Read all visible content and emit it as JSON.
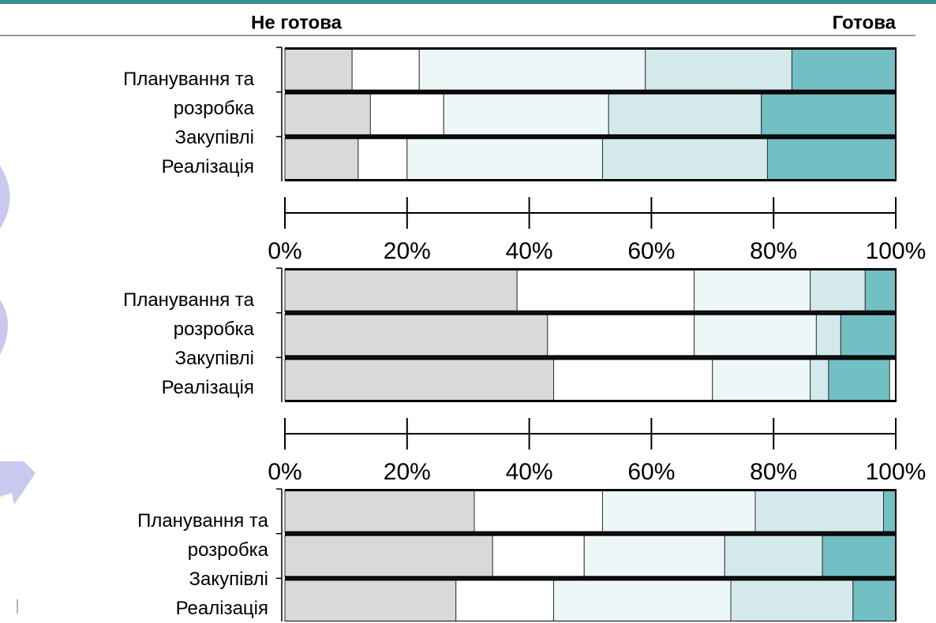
{
  "header": {
    "left": "Не готова",
    "right": "Готова"
  },
  "chart_data": [
    {
      "type": "stacked-bar-horizontal",
      "categories": [
        "Планування та розробка",
        "Закупівлі",
        "Реалізація"
      ],
      "series": [
        {
          "color": "#d9d9d9",
          "values": [
            11,
            14,
            12
          ]
        },
        {
          "color": "#ffffff",
          "values": [
            11,
            12,
            8
          ]
        },
        {
          "color": "#eef7f8",
          "values": [
            37,
            27,
            32
          ]
        },
        {
          "color": "#d4e9ec",
          "values": [
            24,
            25,
            27
          ]
        },
        {
          "color": "#72bfc4",
          "values": [
            17,
            22,
            21
          ]
        }
      ],
      "xlim": [
        0,
        100
      ],
      "xticks": [
        {
          "value": 0,
          "label": "0%"
        },
        {
          "value": 20,
          "label": "20%"
        },
        {
          "value": 40,
          "label": "40%"
        },
        {
          "value": 60,
          "label": "60%"
        },
        {
          "value": 80,
          "label": "80%"
        },
        {
          "value": 100,
          "label": "100%"
        }
      ]
    },
    {
      "type": "stacked-bar-horizontal",
      "categories": [
        "Планування та розробка",
        "Закупівлі",
        "Реалізація"
      ],
      "series": [
        {
          "color": "#d9d9d9",
          "values": [
            38,
            43,
            44
          ]
        },
        {
          "color": "#ffffff",
          "values": [
            29,
            24,
            26
          ]
        },
        {
          "color": "#eef7f8",
          "values": [
            19,
            20,
            16
          ]
        },
        {
          "color": "#d4e9ec",
          "values": [
            9,
            4,
            3
          ]
        },
        {
          "color": "#72bfc4",
          "values": [
            5,
            9,
            10
          ]
        }
      ],
      "xlim": [
        0,
        100
      ],
      "xticks": [
        {
          "value": 0,
          "label": "0%"
        },
        {
          "value": 20,
          "label": "20%"
        },
        {
          "value": 40,
          "label": "40%"
        },
        {
          "value": 60,
          "label": "60%"
        },
        {
          "value": 80,
          "label": "80%"
        },
        {
          "value": 100,
          "label": "100%"
        }
      ]
    },
    {
      "type": "stacked-bar-horizontal",
      "categories": [
        "Планування та розробка",
        "Закупівлі",
        "Реалізація"
      ],
      "series": [
        {
          "color": "#d9d9d9",
          "values": [
            31,
            34,
            28
          ]
        },
        {
          "color": "#ffffff",
          "values": [
            21,
            15,
            16
          ]
        },
        {
          "color": "#eef7f8",
          "values": [
            25,
            23,
            29
          ]
        },
        {
          "color": "#d4e9ec",
          "values": [
            21,
            16,
            20
          ]
        },
        {
          "color": "#72bfc4",
          "values": [
            2,
            12,
            7
          ]
        }
      ],
      "xlim": [
        0,
        100
      ]
    }
  ]
}
